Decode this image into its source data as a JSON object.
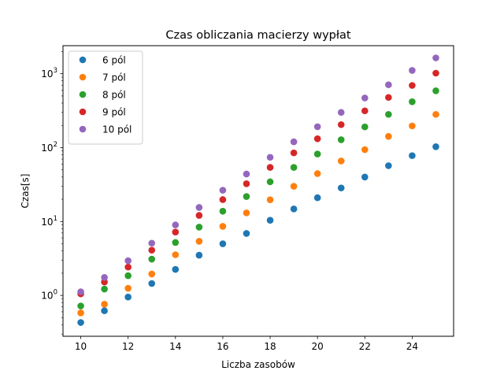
{
  "chart_data": {
    "type": "scatter",
    "title": "Czas obliczania macierzy wypłat",
    "xlabel": "Liczba zasobów",
    "ylabel": "Czas[s]",
    "x": [
      10,
      11,
      12,
      13,
      14,
      15,
      16,
      17,
      18,
      19,
      20,
      21,
      22,
      23,
      24,
      25
    ],
    "xlim": [
      9.25,
      25.75
    ],
    "xticks": [
      10,
      12,
      14,
      16,
      18,
      20,
      22,
      24
    ],
    "yscale": "log",
    "ylim": [
      0.28,
      2400
    ],
    "yticks": [
      {
        "value": 1,
        "base": "10",
        "exp": "0"
      },
      {
        "value": 10,
        "base": "10",
        "exp": "1"
      },
      {
        "value": 100,
        "base": "10",
        "exp": "2"
      },
      {
        "value": 1000,
        "base": "10",
        "exp": "3"
      }
    ],
    "grid": false,
    "legend": "top-left",
    "series": [
      {
        "name": "6 pól",
        "color": "#1f77b4",
        "values": [
          0.43,
          0.62,
          0.95,
          1.45,
          2.25,
          3.5,
          5.0,
          6.9,
          10.4,
          14.8,
          21,
          28.5,
          40,
          57,
          78,
          103
        ]
      },
      {
        "name": "7 pól",
        "color": "#ff7f0e",
        "values": [
          0.58,
          0.76,
          1.25,
          1.95,
          3.55,
          5.4,
          8.6,
          13.1,
          19.7,
          30,
          44.5,
          66,
          94,
          142,
          197,
          282
        ]
      },
      {
        "name": "8 pól",
        "color": "#2ca02c",
        "values": [
          0.72,
          1.22,
          1.85,
          3.1,
          5.2,
          8.4,
          13.8,
          21.8,
          34.5,
          54,
          82,
          128,
          191,
          282,
          418,
          588
        ]
      },
      {
        "name": "9 pól",
        "color": "#d62728",
        "values": [
          1.05,
          1.52,
          2.42,
          4.1,
          7.2,
          12.1,
          19.8,
          32.5,
          54,
          85,
          132,
          205,
          315,
          478,
          695,
          1020
        ]
      },
      {
        "name": "10 pól",
        "color": "#9467bd",
        "values": [
          1.12,
          1.75,
          2.95,
          5.1,
          9.0,
          15.5,
          26.5,
          44,
          74,
          120,
          192,
          300,
          470,
          710,
          1110,
          1640
        ]
      }
    ]
  }
}
